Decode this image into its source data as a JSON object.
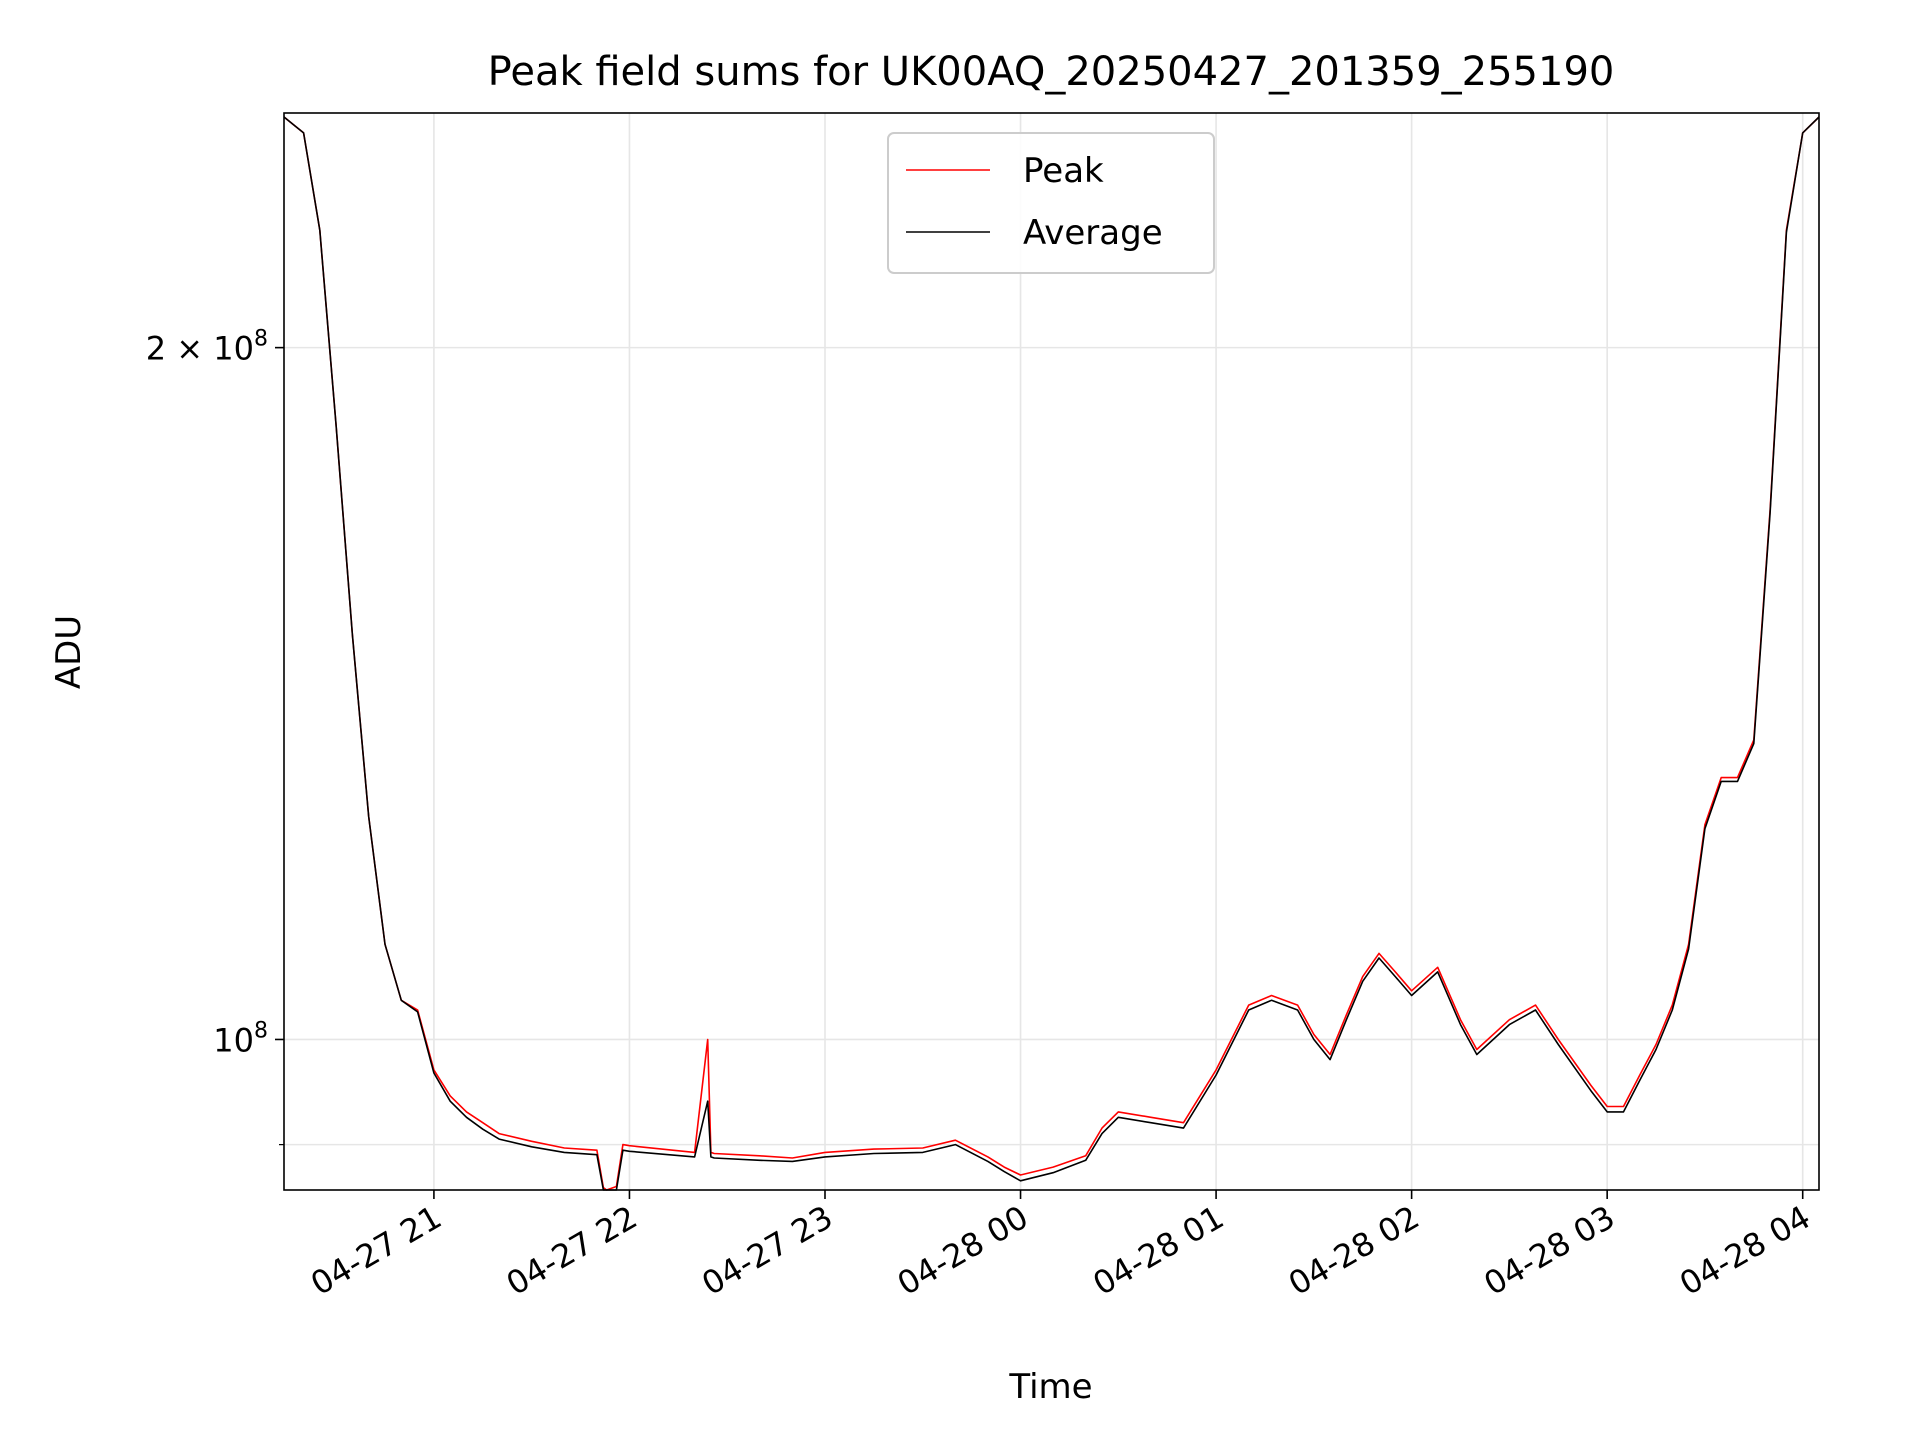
{
  "chart_data": {
    "type": "line",
    "title": "Peak field sums for UK00AQ_20250427_201359_255190",
    "xlabel": "Time",
    "ylabel": "ADU",
    "y_scale": "log",
    "x_range": [
      "2025-04-27 20:14",
      "2025-04-28 04:05"
    ],
    "y_range": [
      86000000,
      253000000
    ],
    "x_ticks": [
      {
        "t": "2025-04-27 21:00",
        "label": "04-27 21"
      },
      {
        "t": "2025-04-27 22:00",
        "label": "04-27 22"
      },
      {
        "t": "2025-04-27 23:00",
        "label": "04-27 23"
      },
      {
        "t": "2025-04-28 00:00",
        "label": "04-28 00"
      },
      {
        "t": "2025-04-28 01:00",
        "label": "04-28 01"
      },
      {
        "t": "2025-04-28 02:00",
        "label": "04-28 02"
      },
      {
        "t": "2025-04-28 03:00",
        "label": "04-28 03"
      },
      {
        "t": "2025-04-28 04:00",
        "label": "04-28 04"
      }
    ],
    "y_ticks_major": [
      {
        "value": 100000000,
        "base": "10",
        "exp": "8",
        "prefix": ""
      },
      {
        "value": 200000000,
        "base": "10",
        "exp": "8",
        "prefix": "2 × "
      }
    ],
    "y_ticks_minor": [
      90000000
    ],
    "grid": true,
    "legend_position": "top-center",
    "series": [
      {
        "name": "Peak",
        "color": "#ff0000",
        "x": [
          "2025-04-27 20:14",
          "2025-04-27 20:20",
          "2025-04-27 20:25",
          "2025-04-27 20:30",
          "2025-04-27 20:35",
          "2025-04-27 20:40",
          "2025-04-27 20:45",
          "2025-04-27 20:50",
          "2025-04-27 20:55",
          "2025-04-27 21:00",
          "2025-04-27 21:05",
          "2025-04-27 21:10",
          "2025-04-27 21:15",
          "2025-04-27 21:20",
          "2025-04-27 21:30",
          "2025-04-27 21:40",
          "2025-04-27 21:50",
          "2025-04-27 21:52",
          "2025-04-27 21:53",
          "2025-04-27 21:56",
          "2025-04-27 21:58",
          "2025-04-27 22:00",
          "2025-04-27 22:20",
          "2025-04-27 22:24",
          "2025-04-27 22:25",
          "2025-04-27 22:26",
          "2025-04-27 22:40",
          "2025-04-27 22:50",
          "2025-04-27 23:00",
          "2025-04-27 23:15",
          "2025-04-27 23:30",
          "2025-04-27 23:40",
          "2025-04-27 23:50",
          "2025-04-27 23:55",
          "2025-04-28 00:00",
          "2025-04-28 00:10",
          "2025-04-28 00:20",
          "2025-04-28 00:25",
          "2025-04-28 00:30",
          "2025-04-28 00:40",
          "2025-04-28 00:50",
          "2025-04-28 01:00",
          "2025-04-28 01:10",
          "2025-04-28 01:17",
          "2025-04-28 01:25",
          "2025-04-28 01:30",
          "2025-04-28 01:35",
          "2025-04-28 01:40",
          "2025-04-28 01:45",
          "2025-04-28 01:50",
          "2025-04-28 01:55",
          "2025-04-28 02:00",
          "2025-04-28 02:08",
          "2025-04-28 02:15",
          "2025-04-28 02:20",
          "2025-04-28 02:30",
          "2025-04-28 02:38",
          "2025-04-28 02:45",
          "2025-04-28 02:55",
          "2025-04-28 03:00",
          "2025-04-28 03:05",
          "2025-04-28 03:10",
          "2025-04-28 03:15",
          "2025-04-28 03:20",
          "2025-04-28 03:25",
          "2025-04-28 03:30",
          "2025-04-28 03:35",
          "2025-04-28 03:40",
          "2025-04-28 03:45",
          "2025-04-28 03:50",
          "2025-04-28 03:55",
          "2025-04-28 04:00",
          "2025-04-28 04:05"
        ],
        "y": [
          252000000,
          248000000,
          225000000,
          185000000,
          150000000,
          125000000,
          110000000,
          104000000,
          103000000,
          97000000,
          94500000,
          93000000,
          92000000,
          91000000,
          90300000,
          89700000,
          89500000,
          86200000,
          86000000,
          86300000,
          90000000,
          89900000,
          89300000,
          100000000,
          89300000,
          89200000,
          89000000,
          88800000,
          89300000,
          89600000,
          89700000,
          90400000,
          88900000,
          88000000,
          87300000,
          88000000,
          89000000,
          91500000,
          93000000,
          92500000,
          92000000,
          97000000,
          103500000,
          104500000,
          103500000,
          100500000,
          98500000,
          102500000,
          106500000,
          109000000,
          107000000,
          105000000,
          107500000,
          102000000,
          99000000,
          102000000,
          103500000,
          100000000,
          95500000,
          93500000,
          93500000,
          96500000,
          99500000,
          103500000,
          110000000,
          124000000,
          130000000,
          130000000,
          135000000,
          170000000,
          225000000,
          248000000,
          252000000
        ]
      },
      {
        "name": "Average",
        "color": "#000000",
        "x": [
          "2025-04-27 20:14",
          "2025-04-27 20:20",
          "2025-04-27 20:25",
          "2025-04-27 20:30",
          "2025-04-27 20:35",
          "2025-04-27 20:40",
          "2025-04-27 20:45",
          "2025-04-27 20:50",
          "2025-04-27 20:55",
          "2025-04-27 21:00",
          "2025-04-27 21:05",
          "2025-04-27 21:10",
          "2025-04-27 21:15",
          "2025-04-27 21:20",
          "2025-04-27 21:30",
          "2025-04-27 21:40",
          "2025-04-27 21:50",
          "2025-04-27 21:52",
          "2025-04-27 21:53",
          "2025-04-27 21:56",
          "2025-04-27 21:58",
          "2025-04-27 22:00",
          "2025-04-27 22:20",
          "2025-04-27 22:24",
          "2025-04-27 22:25",
          "2025-04-27 22:26",
          "2025-04-27 22:40",
          "2025-04-27 22:50",
          "2025-04-27 23:00",
          "2025-04-27 23:15",
          "2025-04-27 23:30",
          "2025-04-27 23:40",
          "2025-04-27 23:50",
          "2025-04-27 23:55",
          "2025-04-28 00:00",
          "2025-04-28 00:10",
          "2025-04-28 00:20",
          "2025-04-28 00:25",
          "2025-04-28 00:30",
          "2025-04-28 00:40",
          "2025-04-28 00:50",
          "2025-04-28 01:00",
          "2025-04-28 01:10",
          "2025-04-28 01:17",
          "2025-04-28 01:25",
          "2025-04-28 01:30",
          "2025-04-28 01:35",
          "2025-04-28 01:40",
          "2025-04-28 01:45",
          "2025-04-28 01:50",
          "2025-04-28 01:55",
          "2025-04-28 02:00",
          "2025-04-28 02:08",
          "2025-04-28 02:15",
          "2025-04-28 02:20",
          "2025-04-28 02:30",
          "2025-04-28 02:38",
          "2025-04-28 02:45",
          "2025-04-28 02:55",
          "2025-04-28 03:00",
          "2025-04-28 03:05",
          "2025-04-28 03:10",
          "2025-04-28 03:15",
          "2025-04-28 03:20",
          "2025-04-28 03:25",
          "2025-04-28 03:30",
          "2025-04-28 03:35",
          "2025-04-28 03:40",
          "2025-04-28 03:45",
          "2025-04-28 03:50",
          "2025-04-28 03:55",
          "2025-04-28 04:00",
          "2025-04-28 04:05"
        ],
        "y": [
          252000000,
          248000000,
          225000000,
          185000000,
          150000000,
          125000000,
          110000000,
          104000000,
          102800000,
          96700000,
          94000000,
          92500000,
          91400000,
          90500000,
          89800000,
          89300000,
          89100000,
          85800000,
          85700000,
          86000000,
          89500000,
          89400000,
          88900000,
          94000000,
          88900000,
          88800000,
          88600000,
          88500000,
          88900000,
          89200000,
          89300000,
          90000000,
          88500000,
          87600000,
          86800000,
          87500000,
          88600000,
          91000000,
          92500000,
          92000000,
          91500000,
          96500000,
          103000000,
          104000000,
          103000000,
          100000000,
          98000000,
          102000000,
          106000000,
          108500000,
          106500000,
          104500000,
          107000000,
          101500000,
          98500000,
          101500000,
          103000000,
          99500000,
          95000000,
          93000000,
          93000000,
          96000000,
          99000000,
          103000000,
          109500000,
          123500000,
          129500000,
          129500000,
          134500000,
          169500000,
          224500000,
          248000000,
          252000000
        ]
      }
    ]
  }
}
